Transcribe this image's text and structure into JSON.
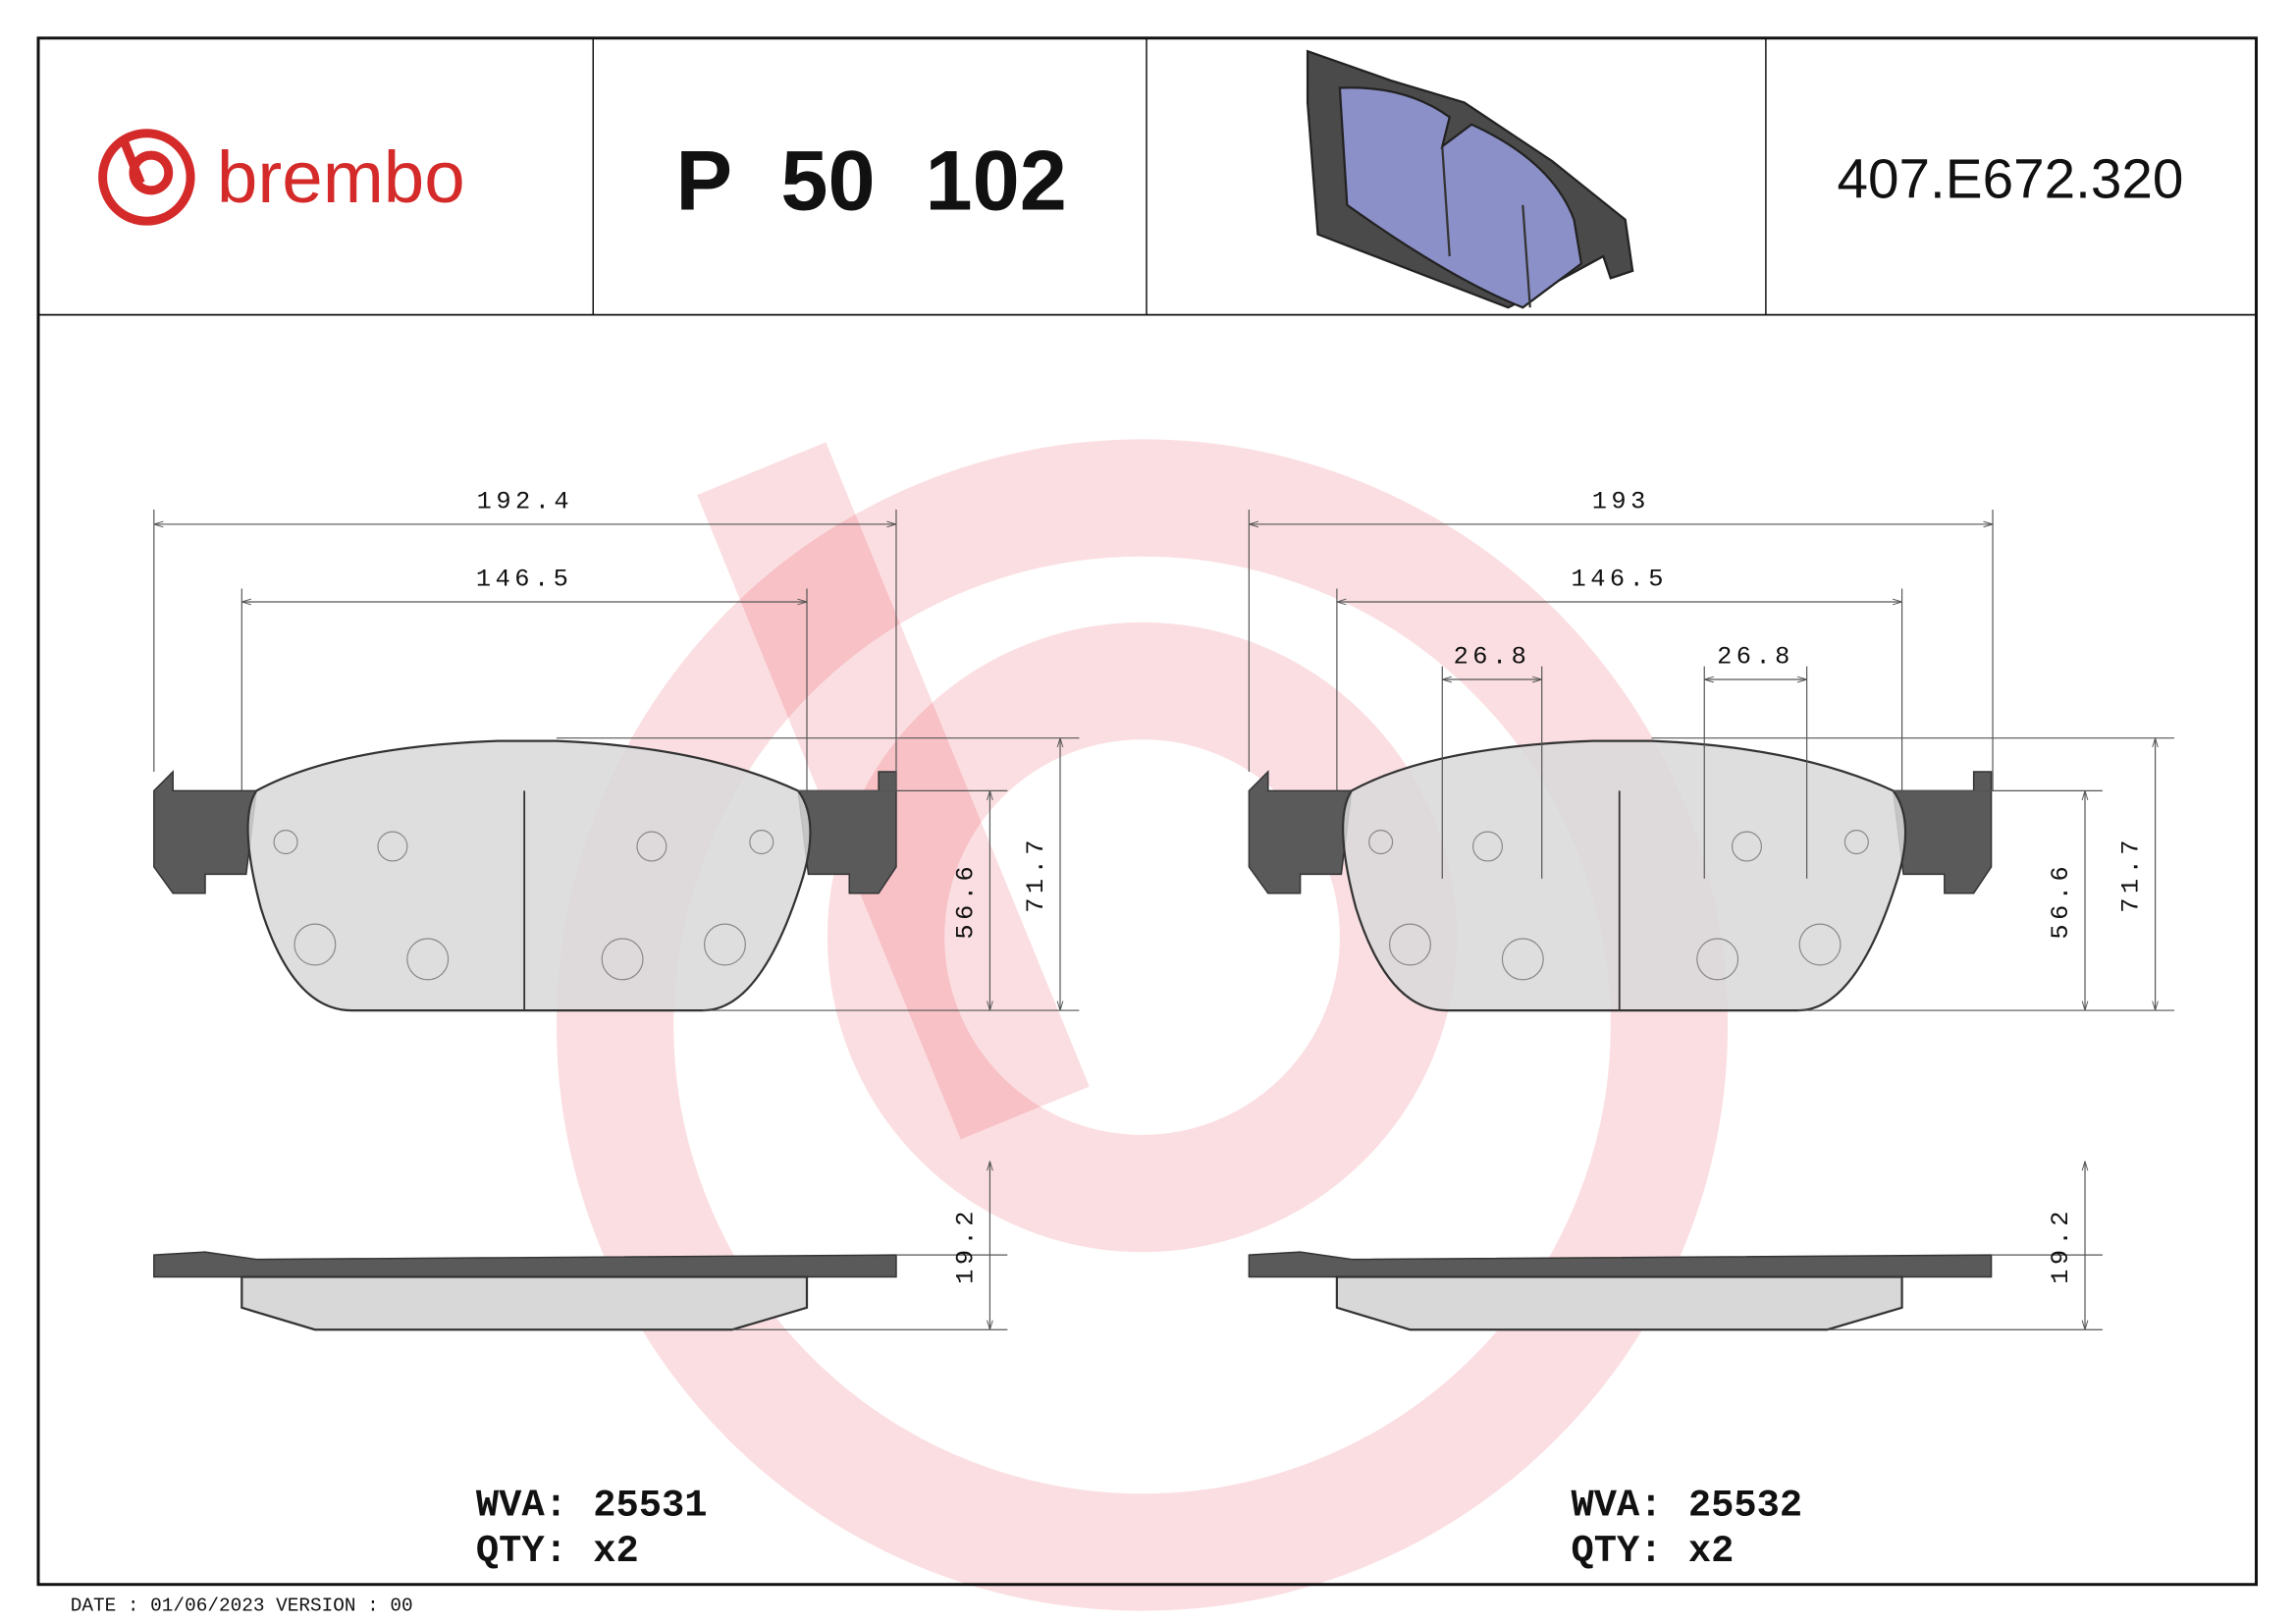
{
  "header": {
    "brand": "brembo",
    "part_number": "P 50 102",
    "code": "407.E672.320"
  },
  "drawings": [
    {
      "dimensions": {
        "overall_width": "192.4",
        "friction_width": "146.5",
        "friction_height": "56.6",
        "overall_height": "71.7",
        "thickness": "19.2"
      },
      "wva_label": "WVA:",
      "wva": "25531",
      "qty_label": "QTY:",
      "qty": "x2"
    },
    {
      "dimensions": {
        "overall_width": "193",
        "friction_width": "146.5",
        "friction_height": "56.6",
        "overall_height": "71.7",
        "thickness": "19.2",
        "sensor_spacing": [
          "26.8",
          "26.8"
        ]
      },
      "wva_label": "WVA:",
      "wva": "25532",
      "qty_label": "QTY:",
      "qty": "x2"
    }
  ],
  "footer": "DATE : 01/06/2023 VERSION : 00"
}
